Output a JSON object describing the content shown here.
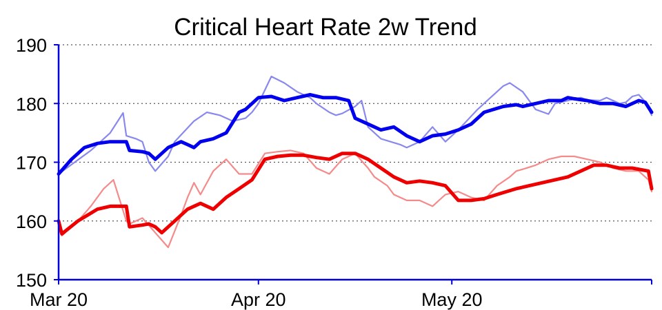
{
  "chart_data": {
    "type": "line",
    "title": "Critical Heart Rate 2w Trend",
    "xlabel": "",
    "ylabel": "",
    "x_tick_labels": [
      "Mar 20",
      "Apr 20",
      "May 20"
    ],
    "y_tick_labels": [
      "150",
      "160",
      "170",
      "180",
      "190"
    ],
    "ylim": [
      150,
      190
    ],
    "x_range_days": [
      0,
      92
    ],
    "grid": "horizontal dotted",
    "legend": "none",
    "colors": {
      "blue_light": "#8888ee",
      "blue_bold": "#0000ee",
      "red_light": "#f58a8a",
      "red_bold": "#ee0000",
      "axis": "#0000dd",
      "grid": "#555555"
    },
    "series": [
      {
        "style": "light",
        "color": "blue_light",
        "x": [
          0,
          5,
          8,
          10,
          10.5,
          12,
          13,
          14,
          15,
          17,
          18,
          21,
          23,
          25,
          27,
          29,
          30,
          31,
          33,
          35,
          37,
          39,
          40,
          42,
          43,
          44,
          46,
          47,
          48,
          50,
          53,
          54,
          56,
          58,
          60,
          62,
          65,
          67,
          69,
          70,
          72,
          74,
          76,
          77,
          79,
          81,
          82,
          84,
          85,
          87,
          88,
          89,
          90,
          91,
          92
        ],
        "y": [
          168,
          172,
          175,
          178.4,
          174.5,
          174,
          173.5,
          170,
          168.5,
          171,
          173.5,
          177,
          178.5,
          178,
          177,
          177.5,
          178.5,
          180,
          184.6,
          183.5,
          182,
          181,
          180,
          178.5,
          178,
          178.3,
          179.5,
          180.5,
          176,
          174,
          173,
          172.5,
          173.5,
          176,
          173.5,
          175.5,
          179,
          181,
          183,
          183.5,
          182,
          179,
          178.2,
          180,
          180.5,
          181,
          180.6,
          180.5,
          181,
          180,
          180.2,
          181.2,
          181.5,
          180.3,
          178
        ]
      },
      {
        "style": "bold",
        "color": "blue_bold",
        "x": [
          0,
          2,
          4,
          6,
          8,
          9,
          10.5,
          11,
          13,
          14,
          15,
          16,
          17,
          19,
          20,
          21,
          22,
          24,
          26,
          28,
          29,
          30,
          31,
          33,
          35,
          37,
          39,
          41,
          43,
          45,
          46,
          47,
          49,
          50,
          52,
          54,
          56,
          58,
          60,
          62,
          64,
          66,
          69,
          71,
          72,
          74,
          76,
          78,
          79,
          80,
          82,
          84,
          86,
          88,
          90,
          91,
          92
        ],
        "y": [
          168,
          170.5,
          172.5,
          173.2,
          173.5,
          173.5,
          173.5,
          172,
          171.8,
          171.5,
          170.5,
          171.5,
          172.5,
          173.5,
          173,
          172.5,
          173.5,
          174,
          175,
          178.5,
          179,
          180,
          181,
          181.2,
          180.5,
          181,
          181.5,
          181,
          181,
          180.5,
          177.5,
          177,
          176,
          175.5,
          176,
          174.5,
          173.5,
          174.5,
          174.8,
          175.5,
          176.5,
          178.5,
          179.5,
          179.8,
          179.5,
          180,
          180.5,
          180.5,
          181,
          180.8,
          180.5,
          180,
          180,
          179.5,
          180.5,
          180.2,
          178.5
        ]
      },
      {
        "style": "light",
        "color": "red_light",
        "x": [
          0,
          0.5,
          3,
          5,
          7,
          8.5,
          10.5,
          11,
          13,
          15,
          17,
          19,
          20,
          21,
          22,
          24,
          26,
          28,
          30,
          32,
          34,
          36,
          38,
          40,
          42,
          44,
          46,
          48,
          49,
          51,
          52,
          54,
          56,
          58,
          60,
          62,
          64,
          66,
          68,
          70,
          71,
          72,
          74,
          76,
          78,
          80,
          82,
          84,
          86,
          88,
          90,
          91.5,
          92
        ],
        "y": [
          160,
          157.5,
          160,
          162.5,
          165.5,
          167,
          160,
          159.5,
          160.5,
          158,
          155.5,
          161,
          164,
          166.5,
          164.5,
          168.5,
          170.5,
          168,
          168,
          171.5,
          171.8,
          172,
          171.5,
          169,
          168,
          170.5,
          171.5,
          169,
          167.5,
          166,
          164.5,
          163.5,
          163.5,
          162.5,
          164.5,
          165,
          164,
          163.5,
          166,
          167.5,
          168.5,
          168.8,
          169.5,
          170.5,
          171,
          171,
          170.5,
          170,
          169,
          168.5,
          168.5,
          167,
          165
        ]
      },
      {
        "style": "bold",
        "color": "red_bold",
        "x": [
          0,
          0.5,
          3,
          6,
          8,
          10.5,
          11,
          13,
          14,
          15,
          16,
          18,
          20,
          22,
          24,
          26,
          28,
          30,
          32,
          34,
          36,
          38,
          40,
          42,
          44,
          46,
          48,
          50,
          52,
          54,
          56,
          58,
          60,
          62,
          64,
          66,
          68,
          71,
          73,
          75,
          77,
          79,
          81,
          83,
          85,
          87,
          89,
          91.5,
          92
        ],
        "y": [
          160,
          157.8,
          160,
          162,
          162.5,
          162.5,
          159,
          159.3,
          159.5,
          159,
          158,
          160,
          162,
          163,
          162,
          164,
          165.5,
          167,
          170.5,
          171,
          171.2,
          171.2,
          170.8,
          170.5,
          171.5,
          171.5,
          170.5,
          169,
          167.5,
          166.5,
          166.8,
          166.5,
          166,
          163.5,
          163.5,
          163.8,
          164.5,
          165.5,
          166,
          166.5,
          167,
          167.5,
          168.5,
          169.5,
          169.5,
          169,
          169,
          168.5,
          165.5
        ]
      }
    ]
  }
}
